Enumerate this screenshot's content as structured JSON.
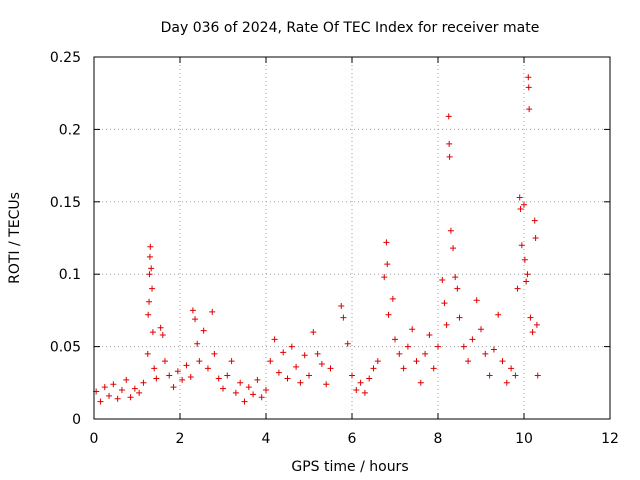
{
  "chart_data": {
    "type": "scatter",
    "title": "Day 036 of 2024, Rate Of TEC Index for receiver mate",
    "xlabel": "GPS time / hours",
    "ylabel": "ROTI / TECUs",
    "xlim": [
      0,
      12
    ],
    "ylim": [
      0,
      0.25
    ],
    "xticks": [
      0,
      2,
      4,
      6,
      8,
      10,
      12
    ],
    "xtick_labels": [
      "0",
      "2",
      "4",
      "6",
      "8",
      "10",
      "12"
    ],
    "yticks": [
      0,
      0.05,
      0.1,
      0.15,
      0.2,
      0.25
    ],
    "ytick_labels": [
      "0",
      "0.05",
      "0.1",
      "0.15",
      "0.2",
      "0.25"
    ],
    "grid": true,
    "marker": "+",
    "color": "#dd0000",
    "series": [
      {
        "name": "ROTI",
        "points": [
          [
            0.05,
            0.019
          ],
          [
            0.15,
            0.012
          ],
          [
            0.25,
            0.022
          ],
          [
            0.35,
            0.016
          ],
          [
            0.45,
            0.024
          ],
          [
            0.55,
            0.014
          ],
          [
            0.65,
            0.02
          ],
          [
            0.75,
            0.027
          ],
          [
            0.85,
            0.015
          ],
          [
            0.95,
            0.021
          ],
          [
            1.05,
            0.018
          ],
          [
            1.15,
            0.025
          ],
          [
            1.25,
            0.045
          ],
          [
            1.26,
            0.072
          ],
          [
            1.28,
            0.081
          ],
          [
            1.29,
            0.1
          ],
          [
            1.3,
            0.112
          ],
          [
            1.31,
            0.119
          ],
          [
            1.33,
            0.104
          ],
          [
            1.35,
            0.09
          ],
          [
            1.37,
            0.06
          ],
          [
            1.4,
            0.035
          ],
          [
            1.45,
            0.028
          ],
          [
            1.55,
            0.063
          ],
          [
            1.6,
            0.058
          ],
          [
            1.65,
            0.04
          ],
          [
            1.75,
            0.03
          ],
          [
            1.85,
            0.022
          ],
          [
            1.95,
            0.033
          ],
          [
            2.05,
            0.027
          ],
          [
            2.15,
            0.037
          ],
          [
            2.25,
            0.029
          ],
          [
            2.3,
            0.075
          ],
          [
            2.35,
            0.069
          ],
          [
            2.4,
            0.052
          ],
          [
            2.45,
            0.04
          ],
          [
            2.55,
            0.061
          ],
          [
            2.65,
            0.035
          ],
          [
            2.75,
            0.074
          ],
          [
            2.8,
            0.045
          ],
          [
            2.9,
            0.028
          ],
          [
            3.0,
            0.021
          ],
          [
            3.1,
            0.03
          ],
          [
            3.2,
            0.04
          ],
          [
            3.3,
            0.018
          ],
          [
            3.4,
            0.025
          ],
          [
            3.5,
            0.012
          ],
          [
            3.6,
            0.022
          ],
          [
            3.7,
            0.017
          ],
          [
            3.8,
            0.027
          ],
          [
            3.9,
            0.015
          ],
          [
            4.0,
            0.02
          ],
          [
            4.1,
            0.04
          ],
          [
            4.2,
            0.055
          ],
          [
            4.3,
            0.032
          ],
          [
            4.4,
            0.046
          ],
          [
            4.5,
            0.028
          ],
          [
            4.6,
            0.05
          ],
          [
            4.7,
            0.036
          ],
          [
            4.8,
            0.025
          ],
          [
            4.9,
            0.044
          ],
          [
            5.0,
            0.03
          ],
          [
            5.1,
            0.06
          ],
          [
            5.2,
            0.045
          ],
          [
            5.3,
            0.038
          ],
          [
            5.4,
            0.024
          ],
          [
            5.5,
            0.035
          ],
          [
            5.75,
            0.078
          ],
          [
            5.8,
            0.07
          ],
          [
            5.9,
            0.052
          ],
          [
            6.0,
            0.03
          ],
          [
            6.1,
            0.02
          ],
          [
            6.2,
            0.025
          ],
          [
            6.3,
            0.018
          ],
          [
            6.4,
            0.028
          ],
          [
            6.5,
            0.035
          ],
          [
            6.6,
            0.04
          ],
          [
            6.75,
            0.098
          ],
          [
            6.8,
            0.122
          ],
          [
            6.82,
            0.107
          ],
          [
            6.85,
            0.072
          ],
          [
            6.95,
            0.083
          ],
          [
            7.0,
            0.055
          ],
          [
            7.1,
            0.045
          ],
          [
            7.2,
            0.035
          ],
          [
            7.3,
            0.05
          ],
          [
            7.4,
            0.062
          ],
          [
            7.5,
            0.04
          ],
          [
            7.6,
            0.025
          ],
          [
            7.7,
            0.045
          ],
          [
            7.8,
            0.058
          ],
          [
            7.9,
            0.035
          ],
          [
            8.0,
            0.05
          ],
          [
            8.1,
            0.096
          ],
          [
            8.15,
            0.08
          ],
          [
            8.2,
            0.065
          ],
          [
            8.25,
            0.209
          ],
          [
            8.26,
            0.19
          ],
          [
            8.27,
            0.181
          ],
          [
            8.3,
            0.13
          ],
          [
            8.35,
            0.118
          ],
          [
            8.4,
            0.098
          ],
          [
            8.45,
            0.09
          ],
          [
            8.5,
            0.07
          ],
          [
            8.6,
            0.05
          ],
          [
            8.7,
            0.04
          ],
          [
            8.8,
            0.055
          ],
          [
            8.9,
            0.082
          ],
          [
            9.0,
            0.062
          ],
          [
            9.1,
            0.045
          ],
          [
            9.2,
            0.03
          ],
          [
            9.3,
            0.048
          ],
          [
            9.4,
            0.072
          ],
          [
            9.5,
            0.04
          ],
          [
            9.6,
            0.025
          ],
          [
            9.7,
            0.035
          ],
          [
            9.8,
            0.03
          ],
          [
            9.85,
            0.09
          ],
          [
            9.9,
            0.153
          ],
          [
            9.92,
            0.145
          ],
          [
            9.95,
            0.12
          ],
          [
            10.0,
            0.148
          ],
          [
            10.02,
            0.11
          ],
          [
            10.05,
            0.095
          ],
          [
            10.08,
            0.1
          ],
          [
            10.1,
            0.236
          ],
          [
            10.11,
            0.229
          ],
          [
            10.12,
            0.214
          ],
          [
            10.15,
            0.07
          ],
          [
            10.2,
            0.06
          ],
          [
            10.25,
            0.137
          ],
          [
            10.27,
            0.125
          ],
          [
            10.3,
            0.065
          ],
          [
            10.32,
            0.03
          ]
        ]
      }
    ]
  }
}
